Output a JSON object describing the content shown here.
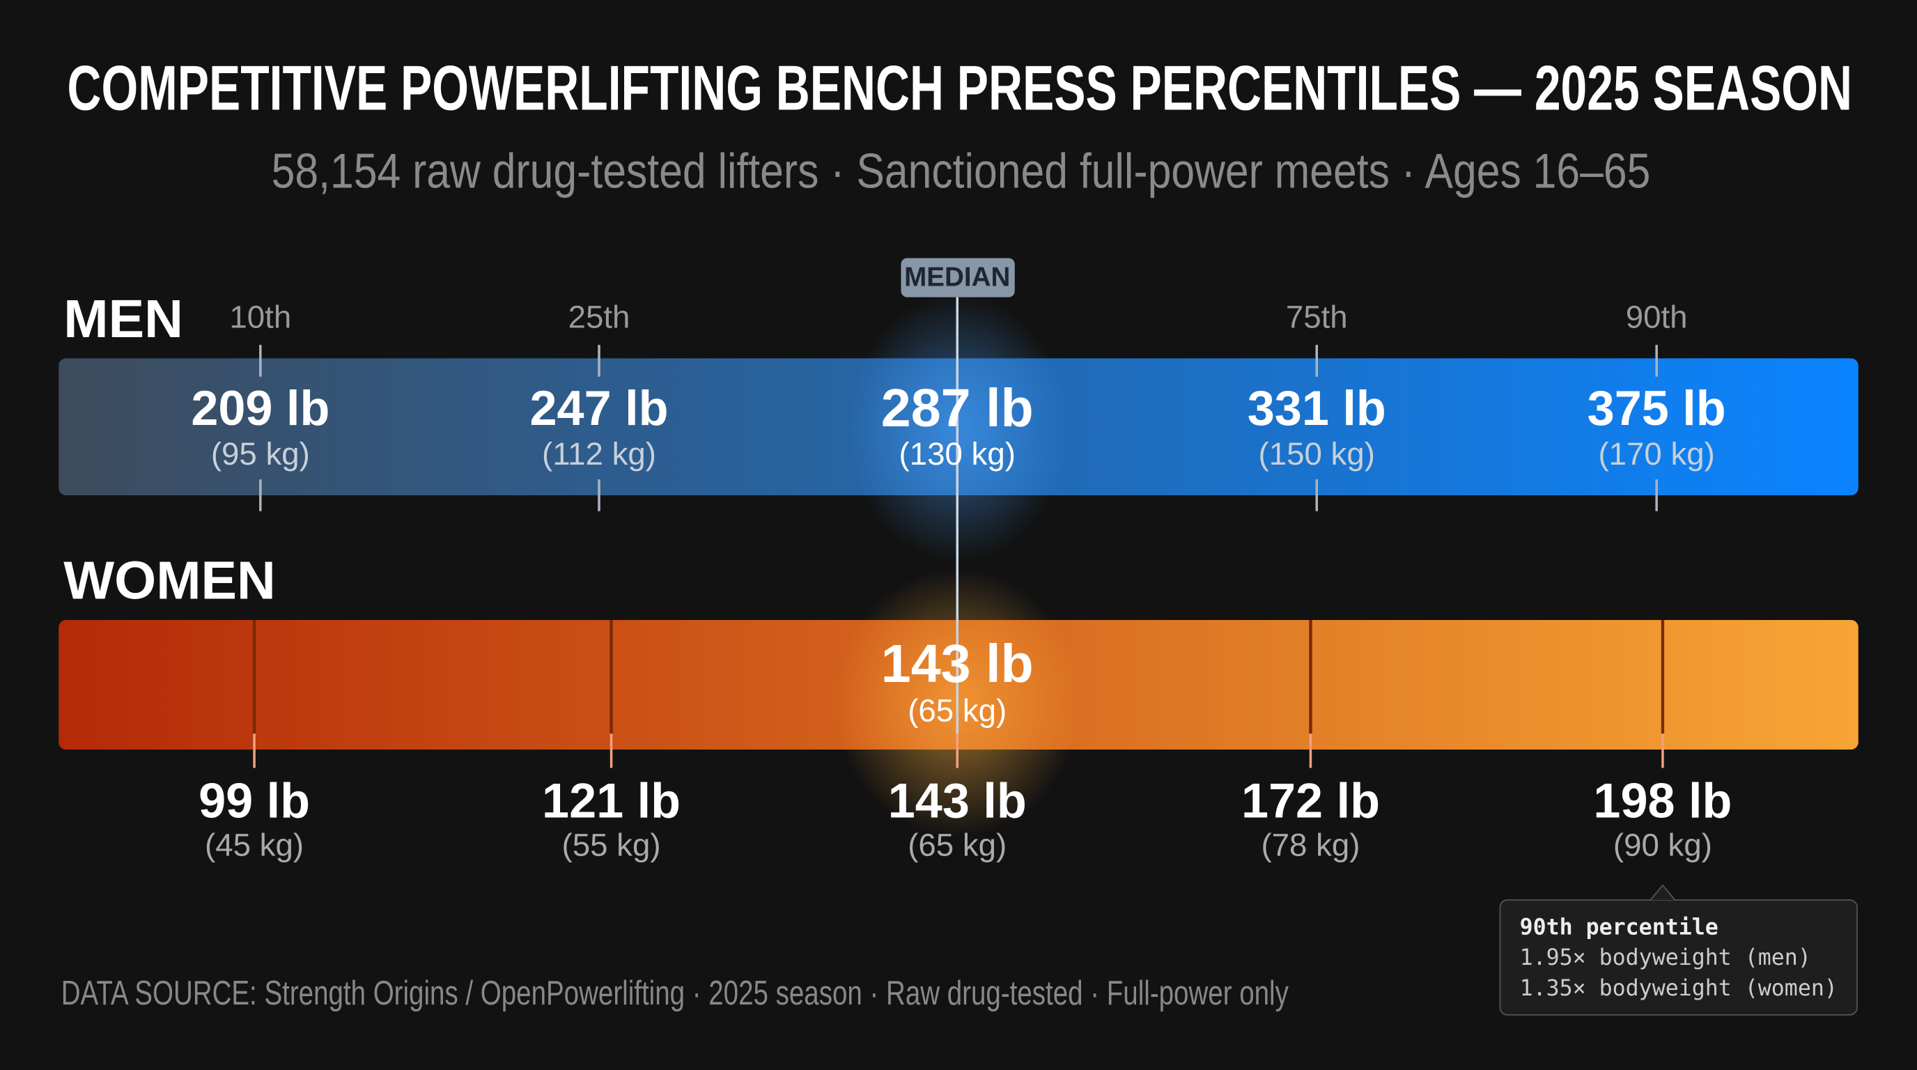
{
  "chart_data": {
    "type": "percentile-bars",
    "title": "COMPETITIVE POWERLIFTING BENCH PRESS PERCENTILES — 2025 SEASON",
    "subtitle": "58,154 raw drug-tested lifters · Sanctioned full-power meets · Ages 16–65",
    "categories": [
      "10th",
      "25th",
      "MEDIAN",
      "75th",
      "90th"
    ],
    "series": [
      {
        "name": "MEN",
        "color": "#0a84ff",
        "values": [
          209,
          247,
          287,
          331,
          375
        ],
        "value_labels": [
          "209 lb",
          "247 lb",
          "287 lb",
          "331 lb",
          "375 lb"
        ],
        "sublabels": [
          "(95 kg)",
          "(112 kg)",
          "(130 kg)",
          "(150 kg)",
          "(170 kg)"
        ]
      },
      {
        "name": "WOMEN",
        "color": "#f7a535",
        "values": [
          99,
          121,
          143,
          172,
          198
        ],
        "value_labels": [
          "99 lb",
          "121 lb",
          "143 lb",
          "172 lb",
          "198 lb"
        ],
        "sublabels": [
          "(45 kg)",
          "(55 kg)",
          "(65 kg)",
          "(78 kg)",
          "(90 kg)"
        ]
      }
    ],
    "note": {
      "title": "90th percentile",
      "lines": [
        "1.95× bodyweight (men)",
        "1.35× bodyweight (women)"
      ]
    },
    "source": "DATA SOURCE: Strength Origins / OpenPowerlifting · 2025 season · Raw drug-tested · Full-power only"
  }
}
